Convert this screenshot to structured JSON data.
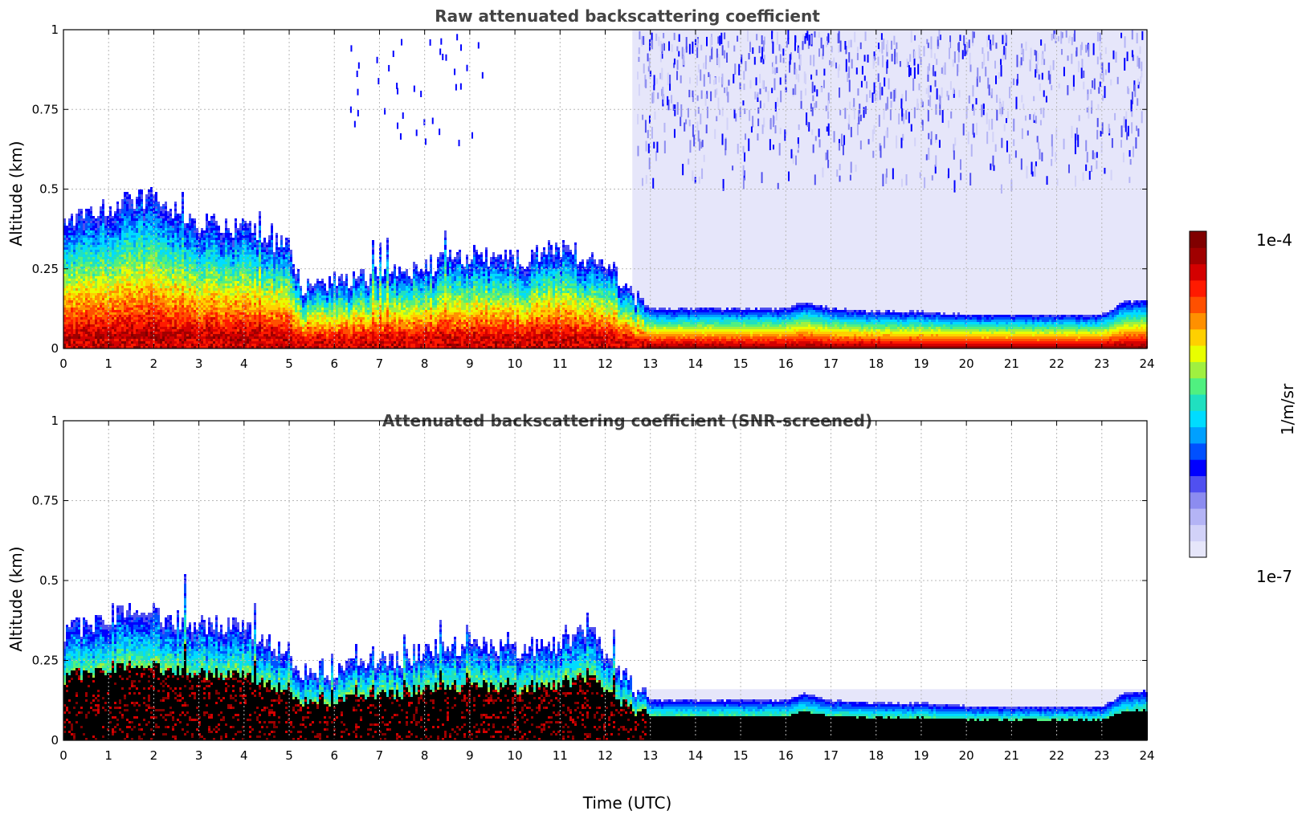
{
  "chart_data": [
    {
      "type": "heatmap",
      "title": "Raw attenuated backscattering coefficient",
      "xlabel": "",
      "ylabel": "Altitude (km)",
      "xlim": [
        0,
        24
      ],
      "ylim": [
        0,
        1
      ],
      "x_ticks": [
        "0",
        "1",
        "2",
        "3",
        "4",
        "5",
        "6",
        "7",
        "8",
        "9",
        "10",
        "11",
        "12",
        "13",
        "14",
        "15",
        "16",
        "17",
        "18",
        "19",
        "20",
        "21",
        "22",
        "23",
        "24"
      ],
      "y_ticks": [
        "0",
        "0.25",
        "0.5",
        "0.75",
        "1"
      ],
      "grid": true,
      "signal_top_km": {
        "time_utc": [
          0,
          1,
          2,
          3,
          4,
          5,
          5.3,
          6,
          7,
          8,
          9,
          10,
          11,
          12,
          12.5,
          13,
          14,
          15,
          16,
          16.4,
          17,
          18,
          19,
          20,
          21,
          22,
          23,
          23.5,
          24
        ],
        "altitude": [
          0.4,
          0.45,
          0.48,
          0.4,
          0.38,
          0.32,
          0.2,
          0.22,
          0.24,
          0.26,
          0.3,
          0.28,
          0.32,
          0.27,
          0.2,
          0.13,
          0.13,
          0.13,
          0.13,
          0.15,
          0.13,
          0.12,
          0.12,
          0.11,
          0.11,
          0.11,
          0.11,
          0.15,
          0.16
        ]
      },
      "noise_region": {
        "time_start": 12.6,
        "time_end": 24,
        "altitude_start": 0.5,
        "altitude_end": 1.0
      }
    },
    {
      "type": "heatmap",
      "title": "Attenuated backscattering coefficient (SNR-screened)",
      "xlabel": "Time (UTC)",
      "ylabel": "Altitude (km)",
      "xlim": [
        0,
        24
      ],
      "ylim": [
        0,
        1
      ],
      "x_ticks": [
        "0",
        "1",
        "2",
        "3",
        "4",
        "5",
        "6",
        "7",
        "8",
        "9",
        "10",
        "11",
        "12",
        "13",
        "14",
        "15",
        "16",
        "17",
        "18",
        "19",
        "20",
        "21",
        "22",
        "23",
        "24"
      ],
      "y_ticks": [
        "0",
        "0.25",
        "0.5",
        "0.75",
        "1"
      ],
      "grid": true,
      "signal_top_km": {
        "time_utc": [
          0,
          1,
          2,
          3,
          4,
          5,
          5.3,
          6,
          7,
          8,
          9,
          10,
          11,
          11.7,
          12,
          12.5,
          13,
          14,
          15,
          16,
          16.4,
          17,
          18,
          19,
          20,
          21,
          22,
          23,
          23.5,
          24
        ],
        "altitude": [
          0.34,
          0.4,
          0.4,
          0.37,
          0.35,
          0.28,
          0.22,
          0.23,
          0.25,
          0.28,
          0.3,
          0.29,
          0.31,
          0.35,
          0.28,
          0.2,
          0.13,
          0.13,
          0.13,
          0.13,
          0.15,
          0.13,
          0.12,
          0.12,
          0.11,
          0.11,
          0.11,
          0.11,
          0.15,
          0.16
        ]
      },
      "screen_band": {
        "time_start": 12.8,
        "time_end": 24,
        "altitude_top": 0.16
      }
    }
  ],
  "colorbar": {
    "label": "1/m/sr",
    "max_label": "1e-4",
    "min_label": "1e-7",
    "colors": [
      "#e6e6fa",
      "#d2d2f8",
      "#b4b4f5",
      "#8c8cf0",
      "#5050f0",
      "#0000ff",
      "#0050ff",
      "#00a0ff",
      "#00dcff",
      "#20e0c0",
      "#50f080",
      "#a0f040",
      "#e8ff00",
      "#ffd000",
      "#ff9000",
      "#ff5000",
      "#ff1a00",
      "#d40000",
      "#a00000",
      "#800000"
    ]
  }
}
